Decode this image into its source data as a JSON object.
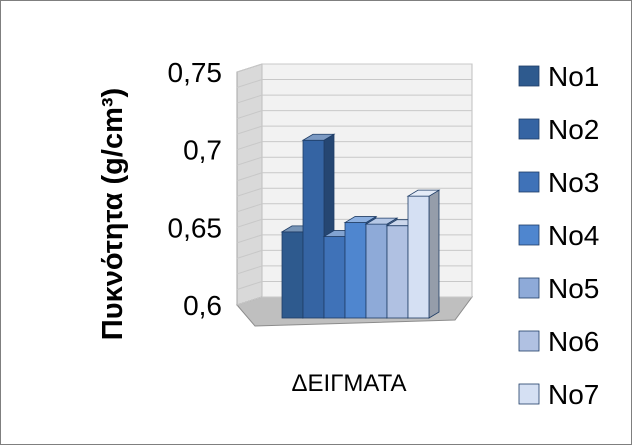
{
  "chart_data": {
    "type": "bar",
    "categories": [
      "ΔΕΙΓΜΑΤΑ"
    ],
    "series": [
      {
        "name": "No1",
        "value": 0.649,
        "color": "#2e5a8e"
      },
      {
        "name": "No2",
        "value": 0.708,
        "color": "#3564a3"
      },
      {
        "name": "No3",
        "value": 0.646,
        "color": "#3f72b8"
      },
      {
        "name": "No4",
        "value": 0.655,
        "color": "#4f86cf"
      },
      {
        "name": "No5",
        "value": 0.654,
        "color": "#8eaad8"
      },
      {
        "name": "No6",
        "value": 0.653,
        "color": "#b0c1e2"
      },
      {
        "name": "No7",
        "value": 0.672,
        "color": "#d5e0f3"
      }
    ],
    "xlabel": "ΔΕΙΓΜΑΤΑ",
    "ylabel": "Πυκνότητα (g/cm³)",
    "ylim": [
      0.6,
      0.75
    ],
    "yticks": [
      "0,6",
      "0,65",
      "0,7",
      "0,75"
    ],
    "grid": true,
    "legend": "right"
  }
}
